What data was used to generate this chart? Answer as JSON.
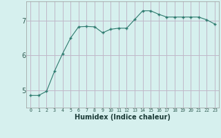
{
  "x": [
    0,
    1,
    2,
    3,
    4,
    5,
    6,
    7,
    8,
    9,
    10,
    11,
    12,
    13,
    14,
    15,
    16,
    17,
    18,
    19,
    20,
    21,
    22,
    23
  ],
  "y": [
    4.85,
    4.85,
    4.97,
    5.55,
    6.05,
    6.5,
    6.82,
    6.83,
    6.82,
    6.65,
    6.75,
    6.78,
    6.78,
    7.03,
    7.28,
    7.28,
    7.18,
    7.1,
    7.1,
    7.1,
    7.1,
    7.1,
    7.02,
    6.9
  ],
  "line_color": "#2d7a6e",
  "marker": "+",
  "marker_size": 3.5,
  "bg_color": "#d6f0ee",
  "grid_color": "#c0b8c8",
  "xlabel": "Humidex (Indice chaleur)",
  "yticks": [
    5,
    6,
    7
  ],
  "xtick_labels": [
    "0",
    "1",
    "2",
    "3",
    "4",
    "5",
    "6",
    "7",
    "8",
    "9",
    "10",
    "11",
    "12",
    "13",
    "14",
    "15",
    "16",
    "17",
    "18",
    "19",
    "20",
    "21",
    "22",
    "23"
  ],
  "ylim": [
    4.5,
    7.55
  ],
  "xlim": [
    -0.5,
    23.5
  ]
}
